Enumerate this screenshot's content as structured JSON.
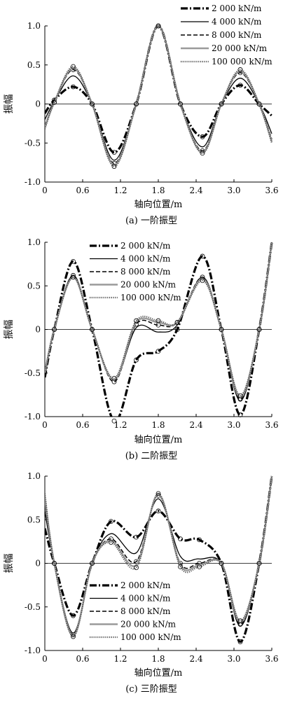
{
  "chart_data": [
    {
      "type": "line",
      "caption": "(a) 一阶振型",
      "xlabel": "轴向位置/m",
      "ylabel": "振幅",
      "xlim": [
        0,
        3.6
      ],
      "ylim": [
        -1.0,
        1.0
      ],
      "xticks": [
        "0",
        "0.6",
        "1.2",
        "1.8",
        "2.4",
        "3.0",
        "3.6"
      ],
      "yticks": [
        "1.0",
        "0.5",
        "0",
        "-0.5",
        "-1.0"
      ],
      "legend_position": "top-right",
      "series": [
        {
          "name": "2 000 kN/m",
          "x": [
            0,
            0.15,
            0.45,
            0.75,
            1.1,
            1.45,
            1.8,
            2.15,
            2.5,
            2.8,
            3.1,
            3.4,
            3.6
          ],
          "y": [
            -0.12,
            0.05,
            0.22,
            0.0,
            -0.62,
            0.0,
            1.0,
            0.0,
            -0.42,
            0.0,
            0.24,
            0.0,
            -0.15
          ]
        },
        {
          "name": "4 000 kN/m",
          "x": [
            0,
            0.15,
            0.45,
            0.75,
            1.1,
            1.45,
            1.8,
            2.15,
            2.5,
            2.8,
            3.1,
            3.4,
            3.6
          ],
          "y": [
            -0.2,
            0.03,
            0.36,
            0.0,
            -0.72,
            0.0,
            1.0,
            0.0,
            -0.55,
            0.0,
            0.33,
            0.0,
            -0.38
          ]
        },
        {
          "name": "8 000 kN/m",
          "x": [
            0,
            0.15,
            0.45,
            0.75,
            1.1,
            1.45,
            1.8,
            2.15,
            2.5,
            2.8,
            3.1,
            3.4,
            3.6
          ],
          "y": [
            -0.28,
            0.02,
            0.44,
            0.0,
            -0.76,
            0.0,
            1.0,
            0.0,
            -0.6,
            0.0,
            0.4,
            0.0,
            -0.45
          ]
        },
        {
          "name": "20 000 kN/m",
          "x": [
            0,
            0.15,
            0.45,
            0.75,
            1.1,
            1.45,
            1.8,
            2.15,
            2.5,
            2.8,
            3.1,
            3.4,
            3.6
          ],
          "y": [
            -0.3,
            0.02,
            0.46,
            0.0,
            -0.78,
            0.0,
            1.0,
            0.0,
            -0.62,
            0.0,
            0.42,
            0.0,
            -0.48
          ]
        },
        {
          "name": "100 000 kN/m",
          "x": [
            0,
            0.15,
            0.45,
            0.75,
            1.1,
            1.45,
            1.8,
            2.15,
            2.5,
            2.8,
            3.1,
            3.4,
            3.6
          ],
          "y": [
            -0.32,
            0.02,
            0.48,
            0.0,
            -0.8,
            0.0,
            1.0,
            0.0,
            -0.63,
            0.0,
            0.44,
            0.0,
            -0.5
          ]
        }
      ]
    },
    {
      "type": "line",
      "caption": "(b) 二阶振型",
      "xlabel": "轴向位置/m",
      "ylabel": "振幅",
      "xlim": [
        0,
        3.6
      ],
      "ylim": [
        -1.0,
        1.0
      ],
      "xticks": [
        "0",
        "0.6",
        "1.2",
        "1.8",
        "2.4",
        "3.0",
        "3.6"
      ],
      "yticks": [
        "1.0",
        "0.5",
        "0",
        "-0.5",
        "-1.0"
      ],
      "legend_position": "top-left",
      "series": [
        {
          "name": "2 000 kN/m",
          "x": [
            0,
            0.15,
            0.45,
            0.75,
            1.1,
            1.45,
            1.8,
            2.1,
            2.5,
            2.8,
            3.1,
            3.4,
            3.6
          ],
          "y": [
            -0.55,
            0.0,
            0.78,
            0.0,
            -1.05,
            -0.35,
            -0.25,
            0.0,
            0.84,
            0.0,
            -0.98,
            0.0,
            1.0
          ]
        },
        {
          "name": "4 000 kN/m",
          "x": [
            0,
            0.15,
            0.45,
            0.75,
            1.1,
            1.45,
            1.8,
            2.1,
            2.5,
            2.8,
            3.1,
            3.4,
            3.6
          ],
          "y": [
            -0.55,
            0.0,
            0.62,
            0.0,
            -0.58,
            0.02,
            -0.03,
            0.05,
            0.6,
            0.0,
            -0.82,
            0.0,
            1.0
          ]
        },
        {
          "name": "8 000 kN/m",
          "x": [
            0,
            0.15,
            0.45,
            0.75,
            1.1,
            1.45,
            1.8,
            2.1,
            2.5,
            2.8,
            3.1,
            3.4,
            3.6
          ],
          "y": [
            -0.52,
            0.0,
            0.62,
            0.0,
            -0.6,
            0.06,
            0.05,
            0.08,
            0.6,
            0.0,
            -0.8,
            0.0,
            1.0
          ]
        },
        {
          "name": "20 000 kN/m",
          "x": [
            0,
            0.15,
            0.45,
            0.75,
            1.1,
            1.45,
            1.8,
            2.1,
            2.5,
            2.8,
            3.1,
            3.4,
            3.6
          ],
          "y": [
            -0.5,
            0.0,
            0.6,
            0.0,
            -0.58,
            0.08,
            0.08,
            0.08,
            0.58,
            0.0,
            -0.78,
            0.0,
            1.0
          ]
        },
        {
          "name": "100 000 kN/m",
          "x": [
            0,
            0.15,
            0.45,
            0.75,
            1.1,
            1.45,
            1.8,
            2.1,
            2.5,
            2.8,
            3.1,
            3.4,
            3.6
          ],
          "y": [
            -0.5,
            0.0,
            0.6,
            0.0,
            -0.56,
            0.1,
            0.1,
            0.08,
            0.56,
            0.0,
            -0.76,
            0.0,
            1.0
          ]
        }
      ]
    },
    {
      "type": "line",
      "caption": "(c) 三阶振型",
      "xlabel": "轴向位置/m",
      "ylabel": "振幅",
      "xlim": [
        0,
        3.6
      ],
      "ylim": [
        -1.0,
        1.0
      ],
      "xticks": [
        "0",
        "0.6",
        "1.2",
        "1.8",
        "2.4",
        "3.0",
        "3.6"
      ],
      "yticks": [
        "1.0",
        "0.5",
        "0",
        "-0.5",
        "-1.0"
      ],
      "legend_position": "bottom-center",
      "series": [
        {
          "name": "2 000 kN/m",
          "x": [
            0,
            0.15,
            0.45,
            0.75,
            1.05,
            1.45,
            1.8,
            2.15,
            2.45,
            2.8,
            3.1,
            3.4,
            3.6
          ],
          "y": [
            0.4,
            0.0,
            -0.6,
            0.0,
            0.48,
            0.3,
            0.6,
            0.28,
            0.27,
            0.0,
            -0.9,
            0.0,
            1.0
          ]
        },
        {
          "name": "4 000 kN/m",
          "x": [
            0,
            0.15,
            0.45,
            0.75,
            1.05,
            1.45,
            1.8,
            2.15,
            2.45,
            2.8,
            3.1,
            3.4,
            3.6
          ],
          "y": [
            0.6,
            0.0,
            -0.8,
            0.0,
            0.34,
            0.12,
            0.74,
            0.08,
            0.05,
            0.0,
            -0.72,
            0.0,
            1.0
          ]
        },
        {
          "name": "8 000 kN/m",
          "x": [
            0,
            0.15,
            0.45,
            0.75,
            1.05,
            1.45,
            1.8,
            2.15,
            2.45,
            2.8,
            3.1,
            3.4,
            3.6
          ],
          "y": [
            0.7,
            0.0,
            -0.82,
            0.0,
            0.28,
            0.02,
            0.78,
            0.0,
            0.0,
            0.0,
            -0.7,
            0.0,
            1.0
          ]
        },
        {
          "name": "20 000 kN/m",
          "x": [
            0,
            0.15,
            0.45,
            0.75,
            1.05,
            1.45,
            1.8,
            2.15,
            2.45,
            2.8,
            3.1,
            3.4,
            3.6
          ],
          "y": [
            0.75,
            0.0,
            -0.83,
            0.0,
            0.26,
            -0.02,
            0.79,
            -0.02,
            -0.02,
            0.0,
            -0.68,
            0.0,
            1.0
          ]
        },
        {
          "name": "100 000 kN/m",
          "x": [
            0,
            0.15,
            0.45,
            0.75,
            1.05,
            1.45,
            1.8,
            2.15,
            2.45,
            2.8,
            3.1,
            3.4,
            3.6
          ],
          "y": [
            0.8,
            0.0,
            -0.84,
            0.0,
            0.24,
            -0.05,
            0.8,
            -0.04,
            -0.04,
            0.0,
            -0.66,
            0.0,
            1.0
          ]
        }
      ]
    }
  ]
}
